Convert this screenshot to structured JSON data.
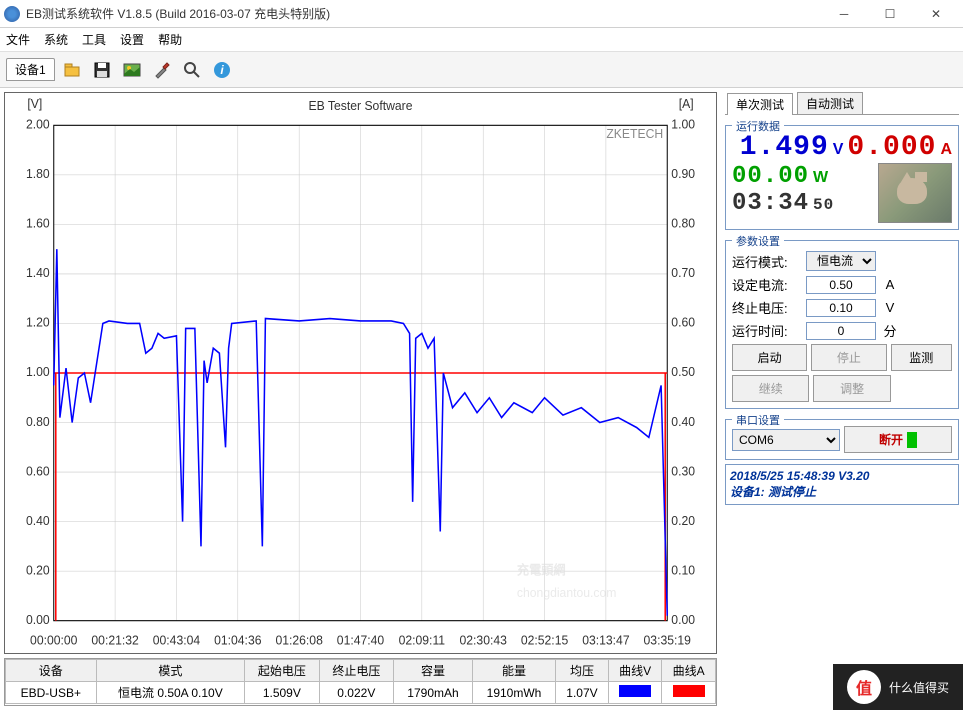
{
  "window": {
    "title": "EB测试系统软件 V1.8.5 (Build 2016-03-07 充电头特别版)"
  },
  "menu": {
    "file": "文件",
    "system": "系统",
    "tools": "工具",
    "settings": "设置",
    "help": "帮助"
  },
  "toolbar": {
    "device_tab": "设备1"
  },
  "chart": {
    "title": "EB Tester Software",
    "watermark_brand": "ZKETECH",
    "watermark_site": "chongdiantou.com",
    "y_left": {
      "label": "[V]",
      "min": 0,
      "max": 2.0,
      "step": 0.2,
      "ticks": [
        "0.00",
        "0.20",
        "0.40",
        "0.60",
        "0.80",
        "1.00",
        "1.20",
        "1.40",
        "1.60",
        "1.80",
        "2.00"
      ]
    },
    "y_right": {
      "label": "[A]",
      "min": 0,
      "max": 1.0,
      "step": 0.1,
      "ticks": [
        "0.00",
        "0.10",
        "0.20",
        "0.30",
        "0.40",
        "0.50",
        "0.60",
        "0.70",
        "0.80",
        "0.90",
        "1.00"
      ]
    },
    "x_ticks": [
      "00:00:00",
      "00:21:32",
      "00:43:04",
      "01:04:36",
      "01:26:08",
      "01:47:40",
      "02:09:11",
      "02:30:43",
      "02:52:15",
      "03:13:47",
      "03:35:19"
    ],
    "colors": {
      "voltage": "#0000ff",
      "current": "#ff0000",
      "grid": "#c8c8c8",
      "axis": "#000"
    },
    "current_line_value": 0.5,
    "voltage_series": [
      [
        0,
        0.95
      ],
      [
        0.5,
        1.5
      ],
      [
        1,
        0.82
      ],
      [
        2,
        1.02
      ],
      [
        3,
        0.8
      ],
      [
        4,
        0.98
      ],
      [
        5,
        1.0
      ],
      [
        6,
        0.88
      ],
      [
        8,
        1.2
      ],
      [
        9,
        1.21
      ],
      [
        12,
        1.2
      ],
      [
        14,
        1.2
      ],
      [
        15,
        1.08
      ],
      [
        16,
        1.1
      ],
      [
        17,
        1.16
      ],
      [
        18,
        1.14
      ],
      [
        20,
        1.15
      ],
      [
        21,
        0.4
      ],
      [
        21.5,
        1.18
      ],
      [
        23,
        1.18
      ],
      [
        24,
        0.3
      ],
      [
        24.5,
        1.05
      ],
      [
        25,
        0.96
      ],
      [
        26,
        1.1
      ],
      [
        27,
        1.08
      ],
      [
        28,
        0.7
      ],
      [
        28.5,
        1.1
      ],
      [
        29,
        1.2
      ],
      [
        33,
        1.21
      ],
      [
        34,
        0.3
      ],
      [
        34.5,
        1.22
      ],
      [
        40,
        1.21
      ],
      [
        45,
        1.22
      ],
      [
        50,
        1.21
      ],
      [
        55,
        1.21
      ],
      [
        57,
        1.2
      ],
      [
        58,
        1.16
      ],
      [
        58.5,
        0.48
      ],
      [
        59,
        1.14
      ],
      [
        60,
        1.16
      ],
      [
        61,
        1.1
      ],
      [
        62,
        1.14
      ],
      [
        63,
        0.36
      ],
      [
        63.5,
        1.0
      ],
      [
        65,
        0.86
      ],
      [
        67,
        0.92
      ],
      [
        69,
        0.84
      ],
      [
        71,
        0.9
      ],
      [
        73,
        0.82
      ],
      [
        75,
        0.88
      ],
      [
        78,
        0.84
      ],
      [
        80,
        0.9
      ],
      [
        83,
        0.83
      ],
      [
        86,
        0.86
      ],
      [
        89,
        0.8
      ],
      [
        92,
        0.82
      ],
      [
        95,
        0.78
      ],
      [
        97,
        0.74
      ],
      [
        99,
        0.95
      ],
      [
        100,
        0.02
      ]
    ]
  },
  "table": {
    "headers": [
      "设备",
      "模式",
      "起始电压",
      "终止电压",
      "容量",
      "能量",
      "均压",
      "曲线V",
      "曲线A"
    ],
    "row": {
      "device": "EBD-USB+",
      "mode": "恒电流  0.50A  0.10V",
      "start_v": "1.509V",
      "end_v": "0.022V",
      "capacity": "1790mAh",
      "energy": "1910mWh",
      "avg_v": "1.07V",
      "color_v": "#0000ff",
      "color_a": "#ff0000"
    }
  },
  "right_tabs": {
    "single": "单次测试",
    "auto": "自动测试"
  },
  "run_data": {
    "title": "运行数据",
    "voltage": "1.499",
    "voltage_unit": "V",
    "current": "0.000",
    "current_unit": "A",
    "power": "00.00",
    "power_unit": "W",
    "time": "03:34",
    "time_sec": "50"
  },
  "params": {
    "title": "参数设置",
    "mode_label": "运行模式:",
    "mode_value": "恒电流",
    "set_current_label": "设定电流:",
    "set_current_value": "0.50",
    "set_current_unit": "A",
    "stop_v_label": "终止电压:",
    "stop_v_value": "0.10",
    "stop_v_unit": "V",
    "run_time_label": "运行时间:",
    "run_time_value": "0",
    "run_time_unit": "分",
    "btn_start": "启动",
    "btn_stop": "停止",
    "btn_monitor": "监测",
    "btn_continue": "继续",
    "btn_adjust": "调整"
  },
  "serial": {
    "title": "串口设置",
    "port": "COM6",
    "disconnect": "断开",
    "connected_color": "#00c000"
  },
  "status": {
    "datetime": "2018/5/25 15:48:39  V3.20",
    "line2": "设备1: 测试停止"
  },
  "watermark_overlay": {
    "text": "什么值得买",
    "badge": "值"
  }
}
